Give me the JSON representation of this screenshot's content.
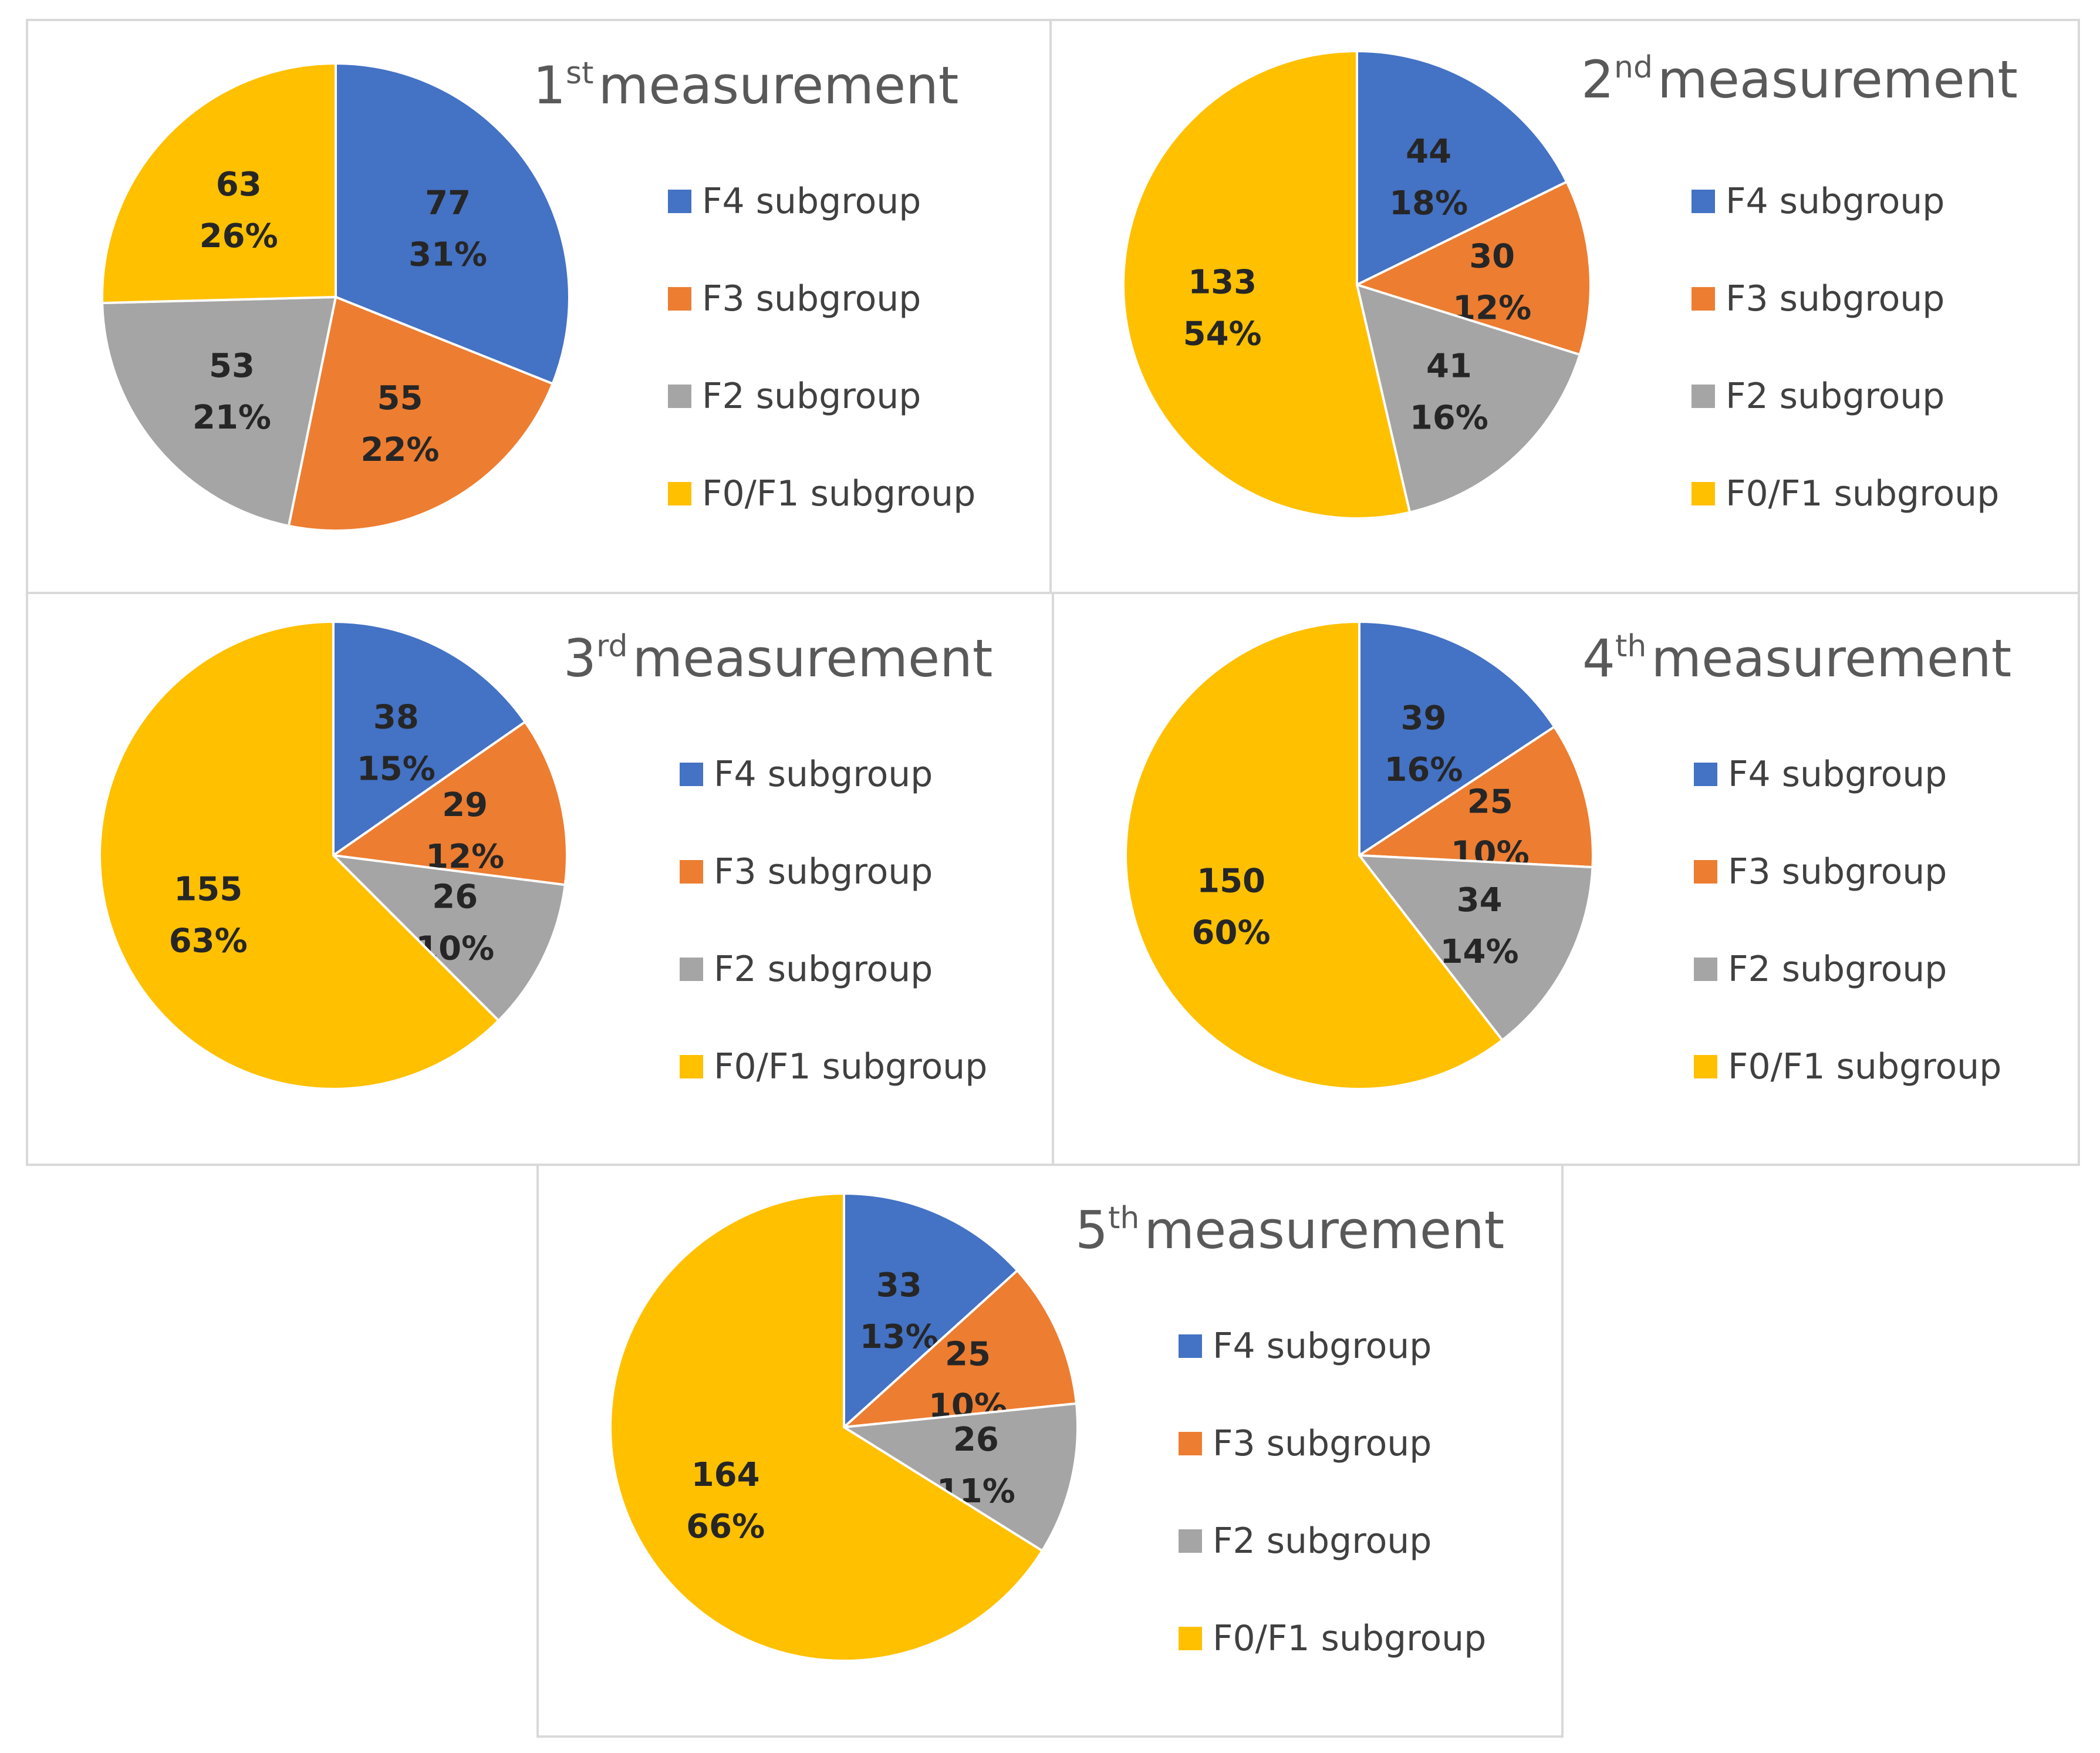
{
  "chart_data": [
    {
      "type": "pie",
      "title_prefix": "1",
      "title_sup": "st",
      "title_suffix": "measurement",
      "categories": [
        "F4 subgroup",
        "F3 subgroup",
        "F2 subgroup",
        "F0/F1 subgroup"
      ],
      "values": [
        77,
        55,
        53,
        63
      ],
      "percent_labels": [
        "31%",
        "22%",
        "21%",
        "26%"
      ],
      "legend_position": "right"
    },
    {
      "type": "pie",
      "title_prefix": "2",
      "title_sup": "nd",
      "title_suffix": "measurement",
      "categories": [
        "F4 subgroup",
        "F3 subgroup",
        "F2 subgroup",
        "F0/F1 subgroup"
      ],
      "values": [
        44,
        30,
        41,
        133
      ],
      "percent_labels": [
        "18%",
        "12%",
        "16%",
        "54%"
      ],
      "legend_position": "right"
    },
    {
      "type": "pie",
      "title_prefix": "3",
      "title_sup": "rd",
      "title_suffix": "measurement",
      "categories": [
        "F4 subgroup",
        "F3 subgroup",
        "F2 subgroup",
        "F0/F1 subgroup"
      ],
      "values": [
        38,
        29,
        26,
        155
      ],
      "percent_labels": [
        "15%",
        "12%",
        "10%",
        "63%"
      ],
      "legend_position": "right"
    },
    {
      "type": "pie",
      "title_prefix": "4",
      "title_sup": "th",
      "title_suffix": "measurement",
      "categories": [
        "F4 subgroup",
        "F3 subgroup",
        "F2 subgroup",
        "F0/F1 subgroup"
      ],
      "values": [
        39,
        25,
        34,
        150
      ],
      "percent_labels": [
        "16%",
        "10%",
        "14%",
        "60%"
      ],
      "legend_position": "right"
    },
    {
      "type": "pie",
      "title_prefix": "5",
      "title_sup": "th",
      "title_suffix": "measurement",
      "categories": [
        "F4 subgroup",
        "F3 subgroup",
        "F2 subgroup",
        "F0/F1 subgroup"
      ],
      "values": [
        33,
        25,
        26,
        164
      ],
      "percent_labels": [
        "13%",
        "10%",
        "11%",
        "66%"
      ],
      "legend_position": "right"
    }
  ],
  "colors": [
    "#4472c4",
    "#ed7d31",
    "#a5a5a5",
    "#ffc000"
  ]
}
